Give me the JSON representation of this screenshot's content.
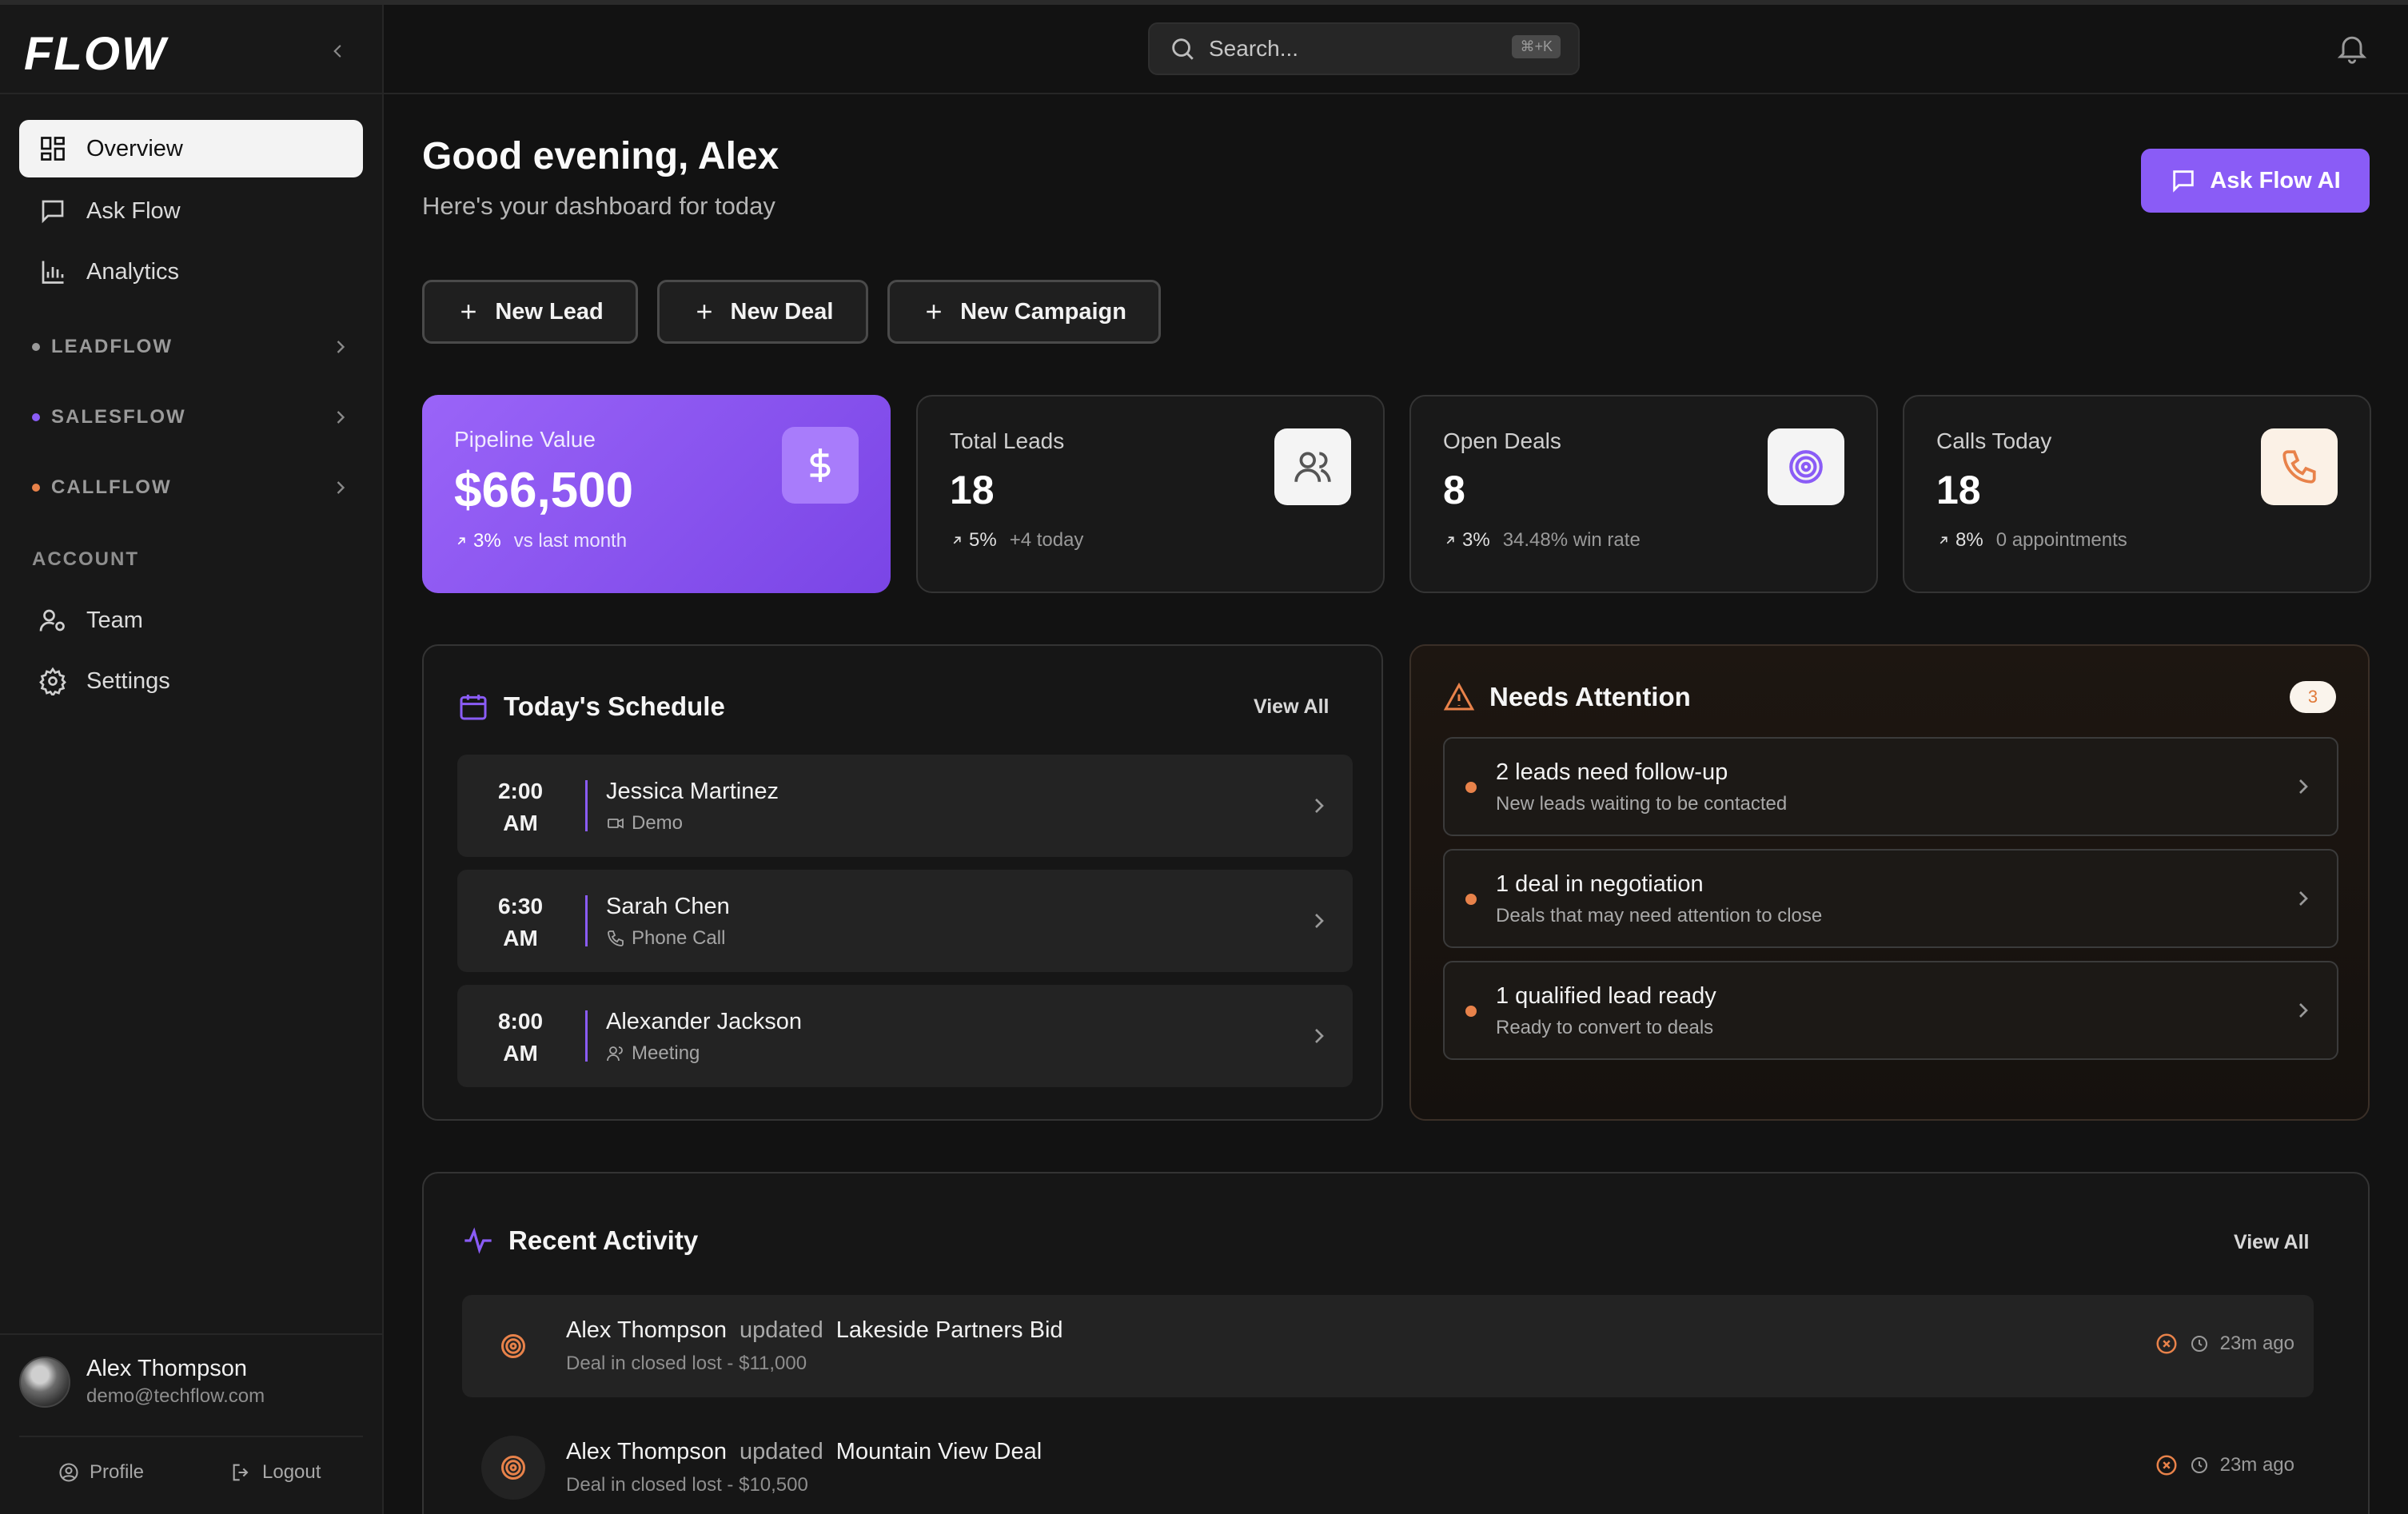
{
  "app": {
    "logo": "FLOW"
  },
  "sidebar": {
    "nav": [
      {
        "label": "Overview",
        "icon": "grid-icon",
        "active": true
      },
      {
        "label": "Ask Flow",
        "icon": "chat-icon",
        "active": false
      },
      {
        "label": "Analytics",
        "icon": "bar-chart-icon",
        "active": false
      }
    ],
    "sections": [
      {
        "label": "LEADFLOW",
        "color": "#9a9a9a"
      },
      {
        "label": "SALESFLOW",
        "color": "#8a5cf6"
      },
      {
        "label": "CALLFLOW",
        "color": "#e8824a"
      }
    ],
    "account_label": "ACCOUNT",
    "account": [
      {
        "label": "Team",
        "icon": "team-icon"
      },
      {
        "label": "Settings",
        "icon": "gear-icon"
      }
    ],
    "user": {
      "name": "Alex Thompson",
      "email": "demo@techflow.com"
    },
    "profile_label": "Profile",
    "logout_label": "Logout"
  },
  "header": {
    "search_placeholder": "Search...",
    "shortcut": "⌘+K"
  },
  "main": {
    "greeting": "Good evening, Alex",
    "subtitle": "Here's your dashboard for today",
    "ask_button": "Ask Flow AI",
    "quick_actions": [
      "New Lead",
      "New Deal",
      "New Campaign"
    ]
  },
  "stats": [
    {
      "label": "Pipeline Value",
      "value": "$66,500",
      "pct": "3%",
      "note": "vs last month",
      "icon": "dollar-icon"
    },
    {
      "label": "Total Leads",
      "value": "18",
      "pct": "5%",
      "note": "+4 today",
      "icon": "users-icon"
    },
    {
      "label": "Open Deals",
      "value": "8",
      "pct": "3%",
      "note": "34.48% win rate",
      "icon": "target-icon"
    },
    {
      "label": "Calls Today",
      "value": "18",
      "pct": "8%",
      "note": "0 appointments",
      "icon": "phone-icon"
    }
  ],
  "schedule": {
    "title": "Today's Schedule",
    "view_all": "View All",
    "items": [
      {
        "time1": "2:00",
        "time2": "AM",
        "name": "Jessica Martinez",
        "type": "Demo",
        "icon": "video-icon"
      },
      {
        "time1": "6:30",
        "time2": "AM",
        "name": "Sarah Chen",
        "type": "Phone Call",
        "icon": "phone-icon"
      },
      {
        "time1": "8:00",
        "time2": "AM",
        "name": "Alexander Jackson",
        "type": "Meeting",
        "icon": "users-icon"
      }
    ]
  },
  "attention": {
    "title": "Needs Attention",
    "count": "3",
    "items": [
      {
        "title": "2 leads need follow-up",
        "sub": "New leads waiting to be contacted"
      },
      {
        "title": "1 deal in negotiation",
        "sub": "Deals that may need attention to close"
      },
      {
        "title": "1 qualified lead ready",
        "sub": "Ready to convert to deals"
      }
    ]
  },
  "activity": {
    "title": "Recent Activity",
    "view_all": "View All",
    "items": [
      {
        "actor": "Alex Thompson",
        "verb": "updated",
        "target": "Lakeside Partners Bid",
        "sub": "Deal in closed lost - $11,000",
        "time": "23m ago"
      },
      {
        "actor": "Alex Thompson",
        "verb": "updated",
        "target": "Mountain View Deal",
        "sub": "Deal in closed lost - $10,500",
        "time": "23m ago"
      }
    ]
  },
  "colors": {
    "accent": "#8a5cf6",
    "orange": "#e8824a",
    "background": "#121212"
  }
}
